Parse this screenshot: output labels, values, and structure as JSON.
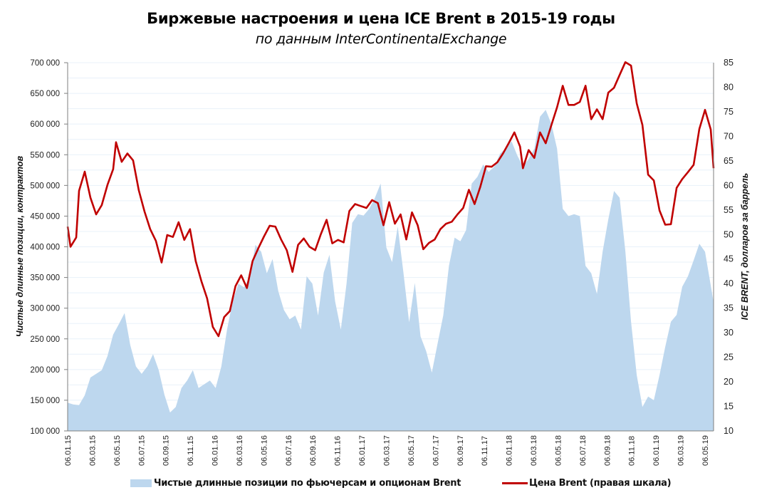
{
  "title": "Биржевые настроения и цена ICE Brent в 2015-19 годы",
  "subtitle": "по данным InterContinentalExchange",
  "chart_data": {
    "type": "area+line",
    "title": "Биржевые настроения и цена ICE Brent в 2015-19 годы",
    "subtitle": "по данным InterContinentalExchange",
    "ylabel_left": "Чистые длинные позиции, контрактов",
    "ylabel_right": "ICE BRENT, долларов за баррель",
    "ylim_left": [
      100000,
      700000
    ],
    "ylim_right": [
      10,
      85
    ],
    "yticks_left": [
      "100 000",
      "150 000",
      "200 000",
      "250 000",
      "300 000",
      "350 000",
      "400 000",
      "450 000",
      "500 000",
      "550 000",
      "600 000",
      "650 000",
      "700 000"
    ],
    "yticks_right": [
      "10",
      "15",
      "20",
      "25",
      "30",
      "35",
      "40",
      "45",
      "50",
      "55",
      "60",
      "65",
      "70",
      "75",
      "80",
      "85"
    ],
    "yticks_left_values": [
      100000,
      150000,
      200000,
      250000,
      300000,
      350000,
      400000,
      450000,
      500000,
      550000,
      600000,
      650000,
      700000
    ],
    "yticks_right_values": [
      10,
      15,
      20,
      25,
      30,
      35,
      40,
      45,
      50,
      55,
      60,
      65,
      70,
      75,
      80,
      85
    ],
    "xticks": [
      "06.01.15",
      "06.03.15",
      "06.05.15",
      "06.07.15",
      "06.09.15",
      "06.11.15",
      "06.01.16",
      "06.03.16",
      "06.05.16",
      "06.07.16",
      "06.09.16",
      "06.11.16",
      "06.01.17",
      "06.03.17",
      "06.05.17",
      "06.07.17",
      "06.09.17",
      "06.11.17",
      "06.01.18",
      "06.03.18",
      "06.05.18",
      "06.07.18",
      "06.09.18",
      "06.11.18",
      "06.01.19",
      "06.03.19",
      "06.05.19"
    ],
    "x_unit": "weeks since 06.01.15",
    "x_range": [
      0,
      227
    ],
    "grid": true,
    "legend_position": "bottom",
    "series": [
      {
        "name": "Чистые длинные позиции по фьючерсам и опционам Brent",
        "axis": "left",
        "kind": "area",
        "color": "#bdd7ee",
        "x": [
          0,
          2,
          4,
          6,
          8,
          10,
          12,
          14,
          16,
          18,
          20,
          22,
          24,
          26,
          28,
          30,
          32,
          34,
          36,
          38,
          40,
          42,
          44,
          46,
          48,
          50,
          52,
          54,
          56,
          58,
          60,
          62,
          64,
          66,
          68,
          70,
          72,
          74,
          76,
          78,
          80,
          82,
          84,
          86,
          88,
          90,
          92,
          94,
          96,
          98,
          100,
          102,
          104,
          106,
          108,
          110,
          112,
          114,
          116,
          118,
          120,
          122,
          124,
          126,
          128,
          130,
          132,
          134,
          136,
          138,
          140,
          142,
          144,
          146,
          148,
          150,
          152,
          154,
          156,
          158,
          160,
          162,
          164,
          166,
          168,
          170,
          172,
          174,
          176,
          178,
          180,
          182,
          184,
          186,
          188,
          190,
          192,
          194,
          196,
          198,
          200,
          202,
          204,
          206,
          208,
          210,
          212,
          214,
          216,
          218,
          220,
          222,
          224,
          227
        ],
        "values": [
          146000,
          143000,
          142000,
          158000,
          187000,
          193000,
          199000,
          222000,
          257000,
          274000,
          292000,
          240000,
          205000,
          193000,
          205000,
          225000,
          199000,
          159000,
          130000,
          139000,
          170000,
          182000,
          199000,
          170000,
          176000,
          182000,
          170000,
          205000,
          265000,
          311000,
          340000,
          334000,
          351000,
          403000,
          392000,
          357000,
          380000,
          328000,
          297000,
          282000,
          288000,
          265000,
          352000,
          340000,
          288000,
          358000,
          387000,
          311000,
          265000,
          340000,
          439000,
          453000,
          451000,
          462000,
          480000,
          503000,
          399000,
          375000,
          433000,
          358000,
          277000,
          341000,
          254000,
          230000,
          195000,
          242000,
          288000,
          369000,
          415000,
          409000,
          427000,
          503000,
          514000,
          534000,
          522000,
          531000,
          552000,
          560000,
          572000,
          549000,
          531000,
          543000,
          560000,
          612000,
          623000,
          600000,
          560000,
          462000,
          450000,
          453000,
          450000,
          369000,
          357000,
          323000,
          392000,
          445000,
          491000,
          480000,
          393000,
          278000,
          191000,
          139000,
          156000,
          150000,
          191000,
          237000,
          278000,
          289000,
          335000,
          352000,
          378000,
          405000,
          392000,
          310000
        ]
      },
      {
        "name": "Цена Brent (правая шкала)",
        "axis": "right",
        "kind": "line",
        "color": "#c00000",
        "x": [
          0,
          1,
          3,
          4,
          6,
          8,
          10,
          12,
          14,
          16,
          17,
          19,
          21,
          23,
          25,
          27,
          29,
          31,
          33,
          35,
          37,
          39,
          41,
          43,
          45,
          47,
          49,
          51,
          53,
          55,
          57,
          59,
          61,
          63,
          65,
          67,
          69,
          71,
          73,
          75,
          77,
          79,
          81,
          83,
          85,
          87,
          89,
          91,
          93,
          95,
          97,
          99,
          101,
          103,
          105,
          107,
          109,
          111,
          113,
          115,
          117,
          119,
          121,
          123,
          125,
          127,
          129,
          131,
          133,
          135,
          137,
          139,
          141,
          143,
          145,
          147,
          149,
          151,
          153,
          155,
          157,
          159,
          160,
          162,
          164,
          166,
          168,
          170,
          172,
          174,
          176,
          178,
          180,
          182,
          184,
          186,
          188,
          190,
          192,
          194,
          196,
          198,
          200,
          202,
          204,
          206,
          208,
          210,
          212,
          214,
          216,
          218,
          220,
          222,
          224,
          226,
          227
        ],
        "values": [
          51.6,
          47.5,
          49.4,
          58.9,
          62.8,
          57.5,
          54.1,
          56.0,
          60.1,
          63.3,
          68.8,
          64.8,
          66.5,
          65.1,
          59.0,
          54.7,
          51.1,
          48.7,
          44.3,
          49.9,
          49.5,
          52.5,
          48.9,
          51.1,
          44.6,
          40.5,
          37.0,
          31.2,
          29.3,
          33.2,
          34.4,
          39.5,
          41.7,
          39.1,
          44.6,
          47.2,
          49.6,
          51.8,
          51.6,
          49.0,
          46.8,
          42.4,
          47.9,
          49.2,
          47.5,
          46.8,
          50.1,
          53.0,
          48.2,
          48.9,
          48.4,
          54.8,
          56.2,
          55.8,
          55.4,
          57.0,
          56.4,
          51.9,
          56.6,
          52.2,
          54.1,
          49.0,
          54.5,
          51.9,
          47.0,
          48.3,
          49.0,
          51.1,
          52.2,
          52.6,
          54.1,
          55.4,
          59.1,
          56.2,
          59.7,
          63.9,
          63.8,
          64.7,
          66.5,
          68.6,
          70.8,
          67.9,
          63.5,
          67.2,
          65.6,
          70.8,
          68.6,
          72.3,
          75.9,
          80.3,
          76.4,
          76.4,
          77.0,
          80.3,
          73.5,
          75.5,
          73.5,
          78.9,
          79.9,
          82.5,
          85.1,
          84.4,
          76.7,
          72.3,
          62.2,
          61.0,
          54.9,
          52.0,
          52.1,
          59.5,
          61.3,
          62.7,
          64.2,
          71.5,
          75.4,
          71.4,
          63.5
        ]
      }
    ]
  },
  "legend": {
    "area_label": "Чистые длинные позиции по фьючерсам и опционам Brent",
    "line_label": "Цена Brent (правая шкала)"
  },
  "colors": {
    "area": "#bdd7ee",
    "line": "#c00000",
    "grid": "#e8f1fa",
    "axis": "#7f7f7f"
  }
}
